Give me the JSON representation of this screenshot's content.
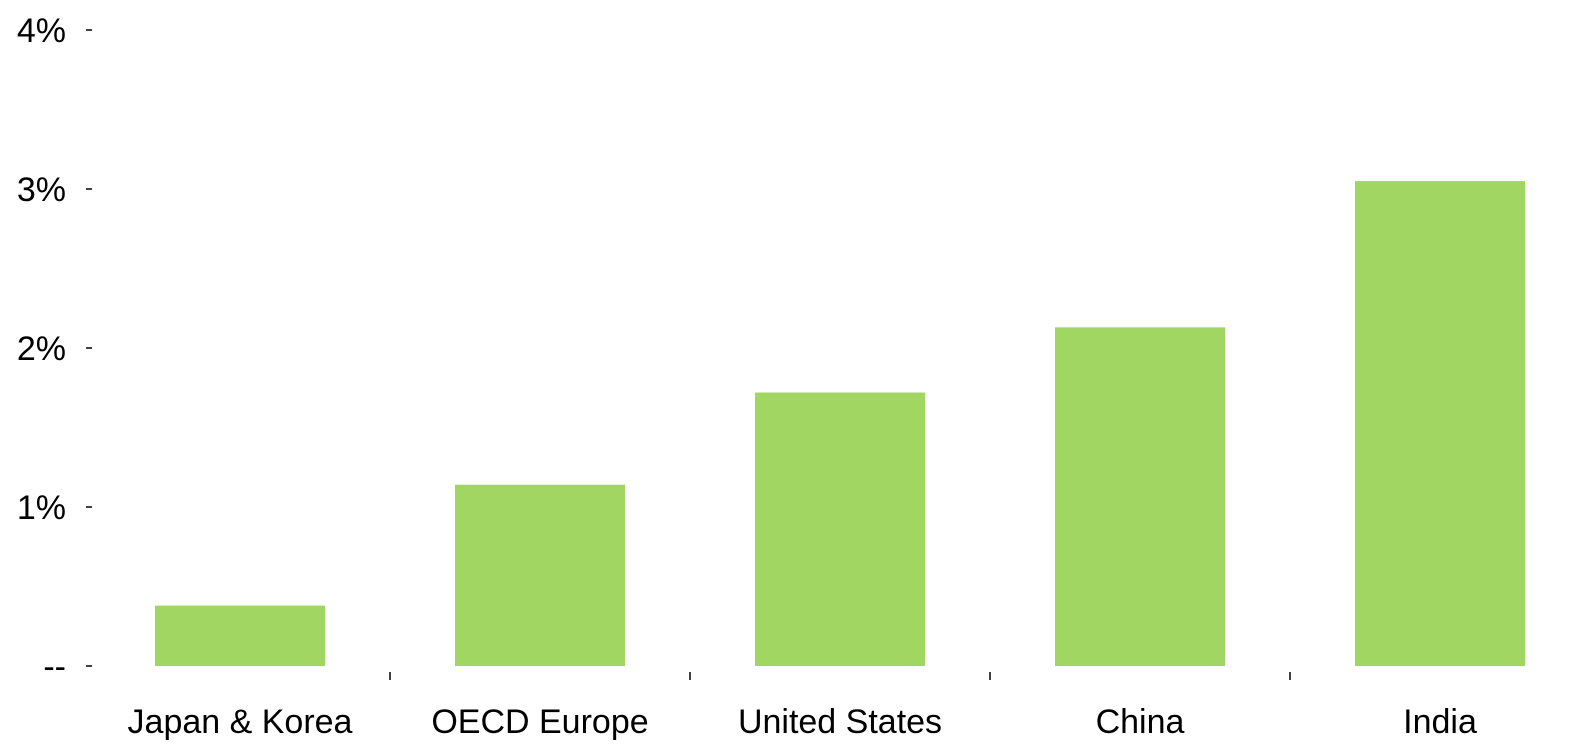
{
  "chart_data": {
    "type": "bar",
    "title": "",
    "xlabel": "",
    "ylabel": "",
    "categories": [
      "Japan & Korea",
      "OECD Europe",
      "United States",
      "China",
      "India"
    ],
    "values": [
      0.38,
      1.14,
      1.72,
      2.13,
      3.05
    ],
    "ylim": [
      0,
      4
    ],
    "y_ticks": [
      {
        "value": 4,
        "label": "4%"
      },
      {
        "value": 3,
        "label": "3%"
      },
      {
        "value": 2,
        "label": "2%"
      },
      {
        "value": 1,
        "label": "1%"
      },
      {
        "value": 0,
        "label": "--"
      }
    ],
    "bar_color": "#A2D662",
    "grid": false,
    "legend": "none"
  }
}
